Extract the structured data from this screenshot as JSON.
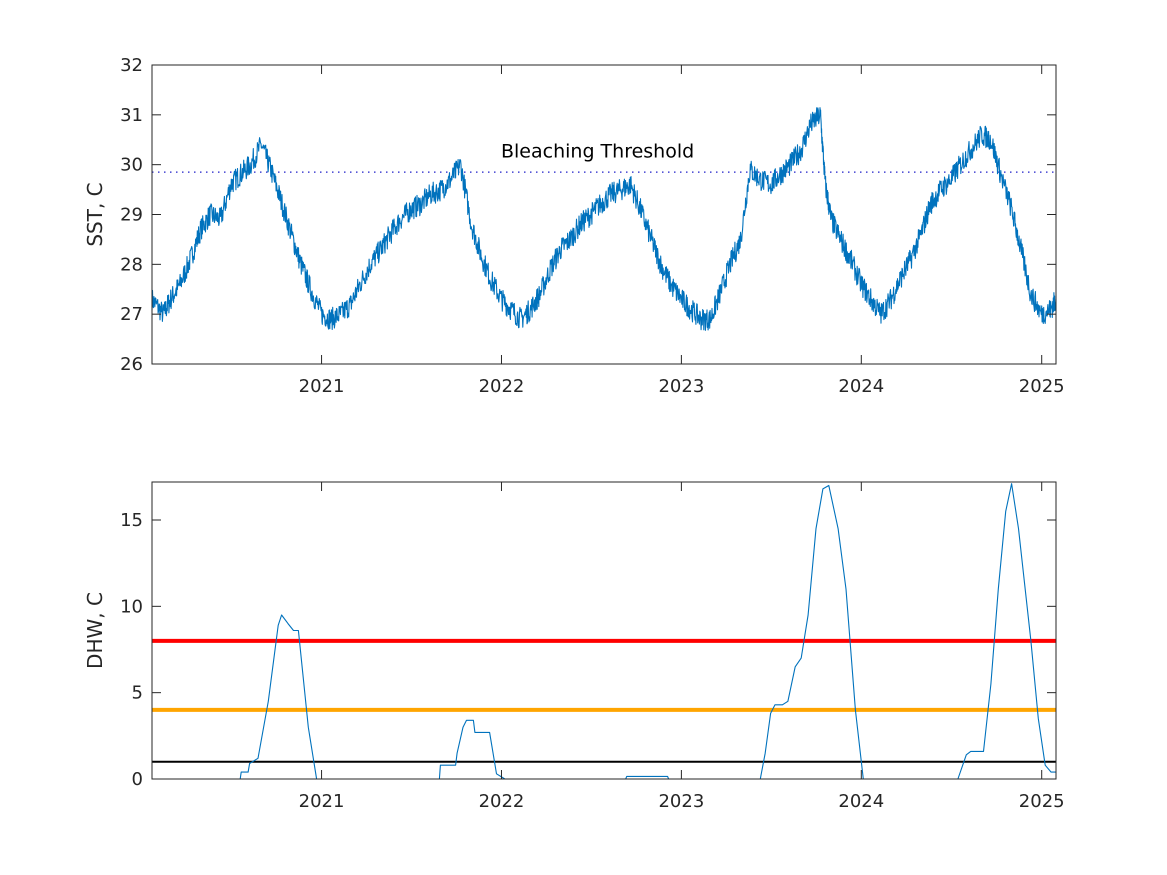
{
  "chart_data": [
    {
      "type": "line",
      "ylabel": "SST, C",
      "xlabel": "",
      "xlim": [
        "2020-01-23",
        "2025-01-30"
      ],
      "ylim": [
        26,
        32
      ],
      "yticks": [
        26,
        27,
        28,
        29,
        30,
        31,
        32
      ],
      "xticks": [
        "2021",
        "2022",
        "2023",
        "2024",
        "2025"
      ],
      "grid": false,
      "annotations": [
        {
          "text": "Bleaching Threshold",
          "at_x": "2022-07-15",
          "at_y": 30.14
        }
      ],
      "reference_lines": [
        {
          "y": 29.85,
          "style": "dotted",
          "color": "#1f1fc8"
        }
      ],
      "series": [
        {
          "color": "#0072bd",
          "x": [
            "2020-01-23",
            "2020-02-15",
            "2020-03-01",
            "2020-03-20",
            "2020-04-10",
            "2020-05-01",
            "2020-05-20",
            "2020-06-10",
            "2020-07-01",
            "2020-07-20",
            "2020-08-10",
            "2020-09-01",
            "2020-09-20",
            "2020-10-10",
            "2020-11-01",
            "2020-11-20",
            "2020-12-10",
            "2021-01-01",
            "2021-01-20",
            "2021-02-10",
            "2021-03-01",
            "2021-03-20",
            "2021-04-10",
            "2021-05-01",
            "2021-05-20",
            "2021-06-10",
            "2021-07-01",
            "2021-07-20",
            "2021-08-10",
            "2021-09-01",
            "2021-09-20",
            "2021-10-10",
            "2021-11-01",
            "2021-11-20",
            "2021-12-10",
            "2022-01-01",
            "2022-01-20",
            "2022-02-10",
            "2022-03-01",
            "2022-03-20",
            "2022-04-10",
            "2022-05-01",
            "2022-05-20",
            "2022-06-10",
            "2022-07-01",
            "2022-07-20",
            "2022-08-10",
            "2022-09-01",
            "2022-09-20",
            "2022-10-10",
            "2022-11-01",
            "2022-11-20",
            "2022-12-10",
            "2023-01-01",
            "2023-01-20",
            "2023-02-10",
            "2023-03-01",
            "2023-03-20",
            "2023-04-10",
            "2023-05-01",
            "2023-05-20",
            "2023-06-10",
            "2023-07-01",
            "2023-07-20",
            "2023-08-10",
            "2023-09-01",
            "2023-09-20",
            "2023-10-10",
            "2023-10-20",
            "2023-11-01",
            "2023-11-20",
            "2023-12-10",
            "2024-01-01",
            "2024-01-20",
            "2024-02-10",
            "2024-03-01",
            "2024-03-20",
            "2024-04-10",
            "2024-05-01",
            "2024-05-20",
            "2024-06-10",
            "2024-07-01",
            "2024-07-20",
            "2024-08-10",
            "2024-09-01",
            "2024-09-20",
            "2024-10-10",
            "2024-11-01",
            "2024-11-20",
            "2024-12-10",
            "2025-01-01",
            "2025-01-20",
            "2025-01-30"
          ],
          "y": [
            27.3,
            27.0,
            27.3,
            27.6,
            28.1,
            28.7,
            29.0,
            28.9,
            29.6,
            29.8,
            30.0,
            30.4,
            29.9,
            29.3,
            28.6,
            28.0,
            27.5,
            27.0,
            26.9,
            27.0,
            27.2,
            27.6,
            28.0,
            28.3,
            28.6,
            28.9,
            29.1,
            29.2,
            29.4,
            29.5,
            29.7,
            30.0,
            28.8,
            28.2,
            27.7,
            27.3,
            27.1,
            26.9,
            27.1,
            27.4,
            27.9,
            28.3,
            28.5,
            28.8,
            29.0,
            29.2,
            29.4,
            29.5,
            29.6,
            29.1,
            28.5,
            28.0,
            27.6,
            27.3,
            27.1,
            26.9,
            26.9,
            27.4,
            28.0,
            28.5,
            29.9,
            29.7,
            29.6,
            29.8,
            30.0,
            30.3,
            30.8,
            31.0,
            29.6,
            28.9,
            28.5,
            28.1,
            27.6,
            27.3,
            27.0,
            27.3,
            27.7,
            28.1,
            28.6,
            29.2,
            29.5,
            29.7,
            30.0,
            30.3,
            30.6,
            30.5,
            29.8,
            29.1,
            28.3,
            27.4,
            27.0,
            27.1,
            27.3
          ]
        }
      ]
    },
    {
      "type": "line",
      "ylabel": "DHW, C",
      "xlabel": "",
      "xlim": [
        "2020-01-23",
        "2025-01-30"
      ],
      "ylim": [
        0,
        17.2
      ],
      "yticks": [
        0,
        5,
        10,
        15
      ],
      "xticks": [
        "2021",
        "2022",
        "2023",
        "2024",
        "2025"
      ],
      "grid": false,
      "reference_lines": [
        {
          "y": 8,
          "color": "#ff0000",
          "style": "solid"
        },
        {
          "y": 4,
          "color": "#ffa500",
          "style": "solid"
        },
        {
          "y": 1,
          "color": "#000000",
          "style": "solid"
        }
      ],
      "series": [
        {
          "color": "#0072bd",
          "x": [
            "2020-01-23",
            "2020-07-20",
            "2020-07-22",
            "2020-08-05",
            "2020-08-08",
            "2020-08-25",
            "2020-09-15",
            "2020-10-05",
            "2020-10-12",
            "2020-10-25",
            "2020-11-05",
            "2020-11-15",
            "2020-12-05",
            "2020-12-22",
            "2021-08-28",
            "2021-08-30",
            "2021-09-30",
            "2021-10-03",
            "2021-10-15",
            "2021-10-22",
            "2021-11-05",
            "2021-11-08",
            "2021-12-08",
            "2021-12-22",
            "2022-01-08",
            "2022-09-10",
            "2022-09-12",
            "2022-12-04",
            "2022-12-06",
            "2023-06-10",
            "2023-06-20",
            "2023-07-01",
            "2023-07-10",
            "2023-07-25",
            "2023-08-05",
            "2023-08-20",
            "2023-09-01",
            "2023-09-15",
            "2023-10-01",
            "2023-10-15",
            "2023-10-27",
            "2023-11-15",
            "2023-12-01",
            "2023-12-20",
            "2024-01-05",
            "2024-01-15",
            "2024-07-15",
            "2024-08-01",
            "2024-08-10",
            "2024-09-05",
            "2024-09-20",
            "2024-10-05",
            "2024-10-20",
            "2024-11-01",
            "2024-11-15",
            "2024-12-10",
            "2024-12-25",
            "2025-01-08",
            "2025-01-20",
            "2025-01-30"
          ],
          "y": [
            0,
            0,
            0.4,
            0.4,
            0.9,
            1.2,
            4.5,
            8.9,
            9.5,
            9.0,
            8.6,
            8.6,
            3.0,
            0,
            0,
            0.8,
            0.8,
            1.5,
            3.0,
            3.4,
            3.4,
            2.7,
            2.7,
            0.3,
            0,
            0,
            0.15,
            0.15,
            0,
            0,
            1.5,
            3.8,
            4.3,
            4.3,
            4.5,
            6.5,
            7.0,
            9.5,
            14.5,
            16.8,
            17.0,
            14.5,
            11.0,
            4.0,
            0,
            0,
            0,
            1.4,
            1.6,
            1.6,
            5.5,
            11.0,
            15.5,
            17.1,
            14.5,
            8.0,
            3.5,
            0.8,
            0.4,
            0.4
          ]
        }
      ]
    }
  ]
}
